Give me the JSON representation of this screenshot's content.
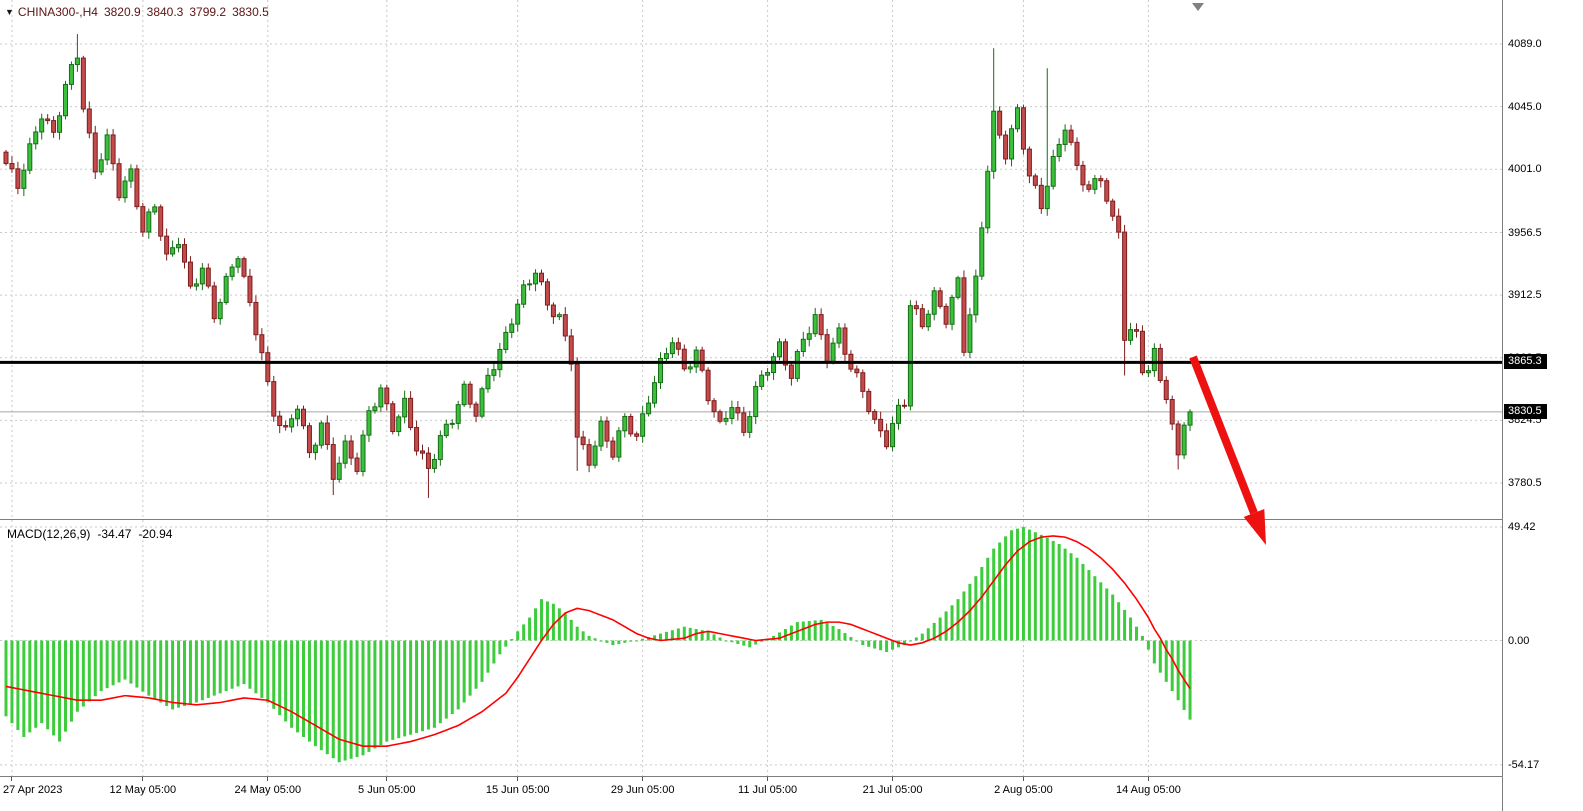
{
  "header": {
    "title": "CHINA300-,H4",
    "open": "3820.9",
    "high": "3840.3",
    "low": "3799.2",
    "close": "3830.5"
  },
  "icons": {
    "symbol_dropdown": "▼",
    "scroll_to_end_marker": "▼"
  },
  "indicator": {
    "name": "MACD(12,26,9)",
    "main_value": "-34.47",
    "signal_value": "-20.94"
  },
  "price_scale": {
    "gridline_labels": [
      {
        "text": "4089.0",
        "value": 4089.0
      },
      {
        "text": "4045.0",
        "value": 4045.0
      },
      {
        "text": "4001.0",
        "value": 4001.0
      },
      {
        "text": "3956.5",
        "value": 3956.5
      },
      {
        "text": "3912.5",
        "value": 3912.5
      },
      {
        "text": "3868.5",
        "value": 3868.5
      },
      {
        "text": "3824.5",
        "value": 3824.5
      },
      {
        "text": "3780.5",
        "value": 3780.5
      }
    ],
    "line_badge": {
      "text": "3865.3",
      "value": 3865.3
    },
    "price_badge": {
      "text": "3830.5",
      "value": 3830.5
    }
  },
  "macd_scale": {
    "labels": [
      {
        "text": "49.42",
        "value": 49.42
      },
      {
        "text": "0.00",
        "value": 0
      },
      {
        "text": "-54.17",
        "value": -54.17
      }
    ]
  },
  "time_scale": {
    "labels": [
      {
        "text": "27 Apr 2023",
        "bar": 1
      },
      {
        "text": "12 May 05:00",
        "bar": 23
      },
      {
        "text": "24 May 05:00",
        "bar": 44
      },
      {
        "text": "5 Jun 05:00",
        "bar": 64
      },
      {
        "text": "15 Jun 05:00",
        "bar": 86
      },
      {
        "text": "29 Jun 05:00",
        "bar": 107
      },
      {
        "text": "11 Jul 05:00",
        "bar": 128
      },
      {
        "text": "21 Jul 05:00",
        "bar": 149
      },
      {
        "text": "2 Aug 05:00",
        "bar": 171
      },
      {
        "text": "14 Aug 05:00",
        "bar": 192
      }
    ]
  },
  "colors": {
    "bull": "#3cbf3c",
    "bull_border": "#156e15",
    "bear": "#c24b4b",
    "bear_border": "#7e1d1d",
    "histogram": "#3ccc3c",
    "signal_line": "#ff0000",
    "grid": "#c9c9c9",
    "price_line": "#000000",
    "current_price_line": "#a8a8a8",
    "arrow": "#ee1111",
    "badge_bg": "#000000",
    "badge_text": "#ffffff",
    "header_text": "#5c1414",
    "scale_text": "#000000",
    "marker": "#808080"
  },
  "chart_data": {
    "type": "candlestick",
    "symbol": "CHINA300-",
    "timeframe": "H4",
    "bars": 200,
    "price_gridlines": [
      4089.0,
      4045.0,
      4001.0,
      3956.5,
      3912.5,
      3868.5,
      3824.5,
      3780.5
    ],
    "horizontal_line_price": 3865.3,
    "current_price": 3830.5,
    "ohlc_last": {
      "open": 3820.9,
      "high": 3840.3,
      "low": 3799.2,
      "close": 3830.5
    },
    "candle_close_anchors": [
      [
        0,
        4005
      ],
      [
        2,
        3990
      ],
      [
        4,
        4015
      ],
      [
        6,
        4040
      ],
      [
        8,
        4025
      ],
      [
        10,
        4060
      ],
      [
        12,
        4082
      ],
      [
        13,
        4045
      ],
      [
        15,
        4000
      ],
      [
        17,
        4022
      ],
      [
        19,
        3985
      ],
      [
        21,
        3998
      ],
      [
        23,
        3958
      ],
      [
        25,
        3976
      ],
      [
        27,
        3938
      ],
      [
        29,
        3952
      ],
      [
        31,
        3916
      ],
      [
        33,
        3932
      ],
      [
        35,
        3898
      ],
      [
        37,
        3922
      ],
      [
        39,
        3942
      ],
      [
        41,
        3905
      ],
      [
        43,
        3872
      ],
      [
        44,
        3848
      ],
      [
        45,
        3830
      ],
      [
        47,
        3816
      ],
      [
        49,
        3836
      ],
      [
        51,
        3800
      ],
      [
        53,
        3822
      ],
      [
        55,
        3786
      ],
      [
        57,
        3806
      ],
      [
        59,
        3792
      ],
      [
        61,
        3830
      ],
      [
        63,
        3846
      ],
      [
        65,
        3820
      ],
      [
        67,
        3836
      ],
      [
        69,
        3806
      ],
      [
        71,
        3790
      ],
      [
        73,
        3812
      ],
      [
        75,
        3826
      ],
      [
        77,
        3846
      ],
      [
        79,
        3830
      ],
      [
        81,
        3856
      ],
      [
        83,
        3872
      ],
      [
        85,
        3896
      ],
      [
        87,
        3916
      ],
      [
        89,
        3930
      ],
      [
        91,
        3906
      ],
      [
        93,
        3896
      ],
      [
        95,
        3868
      ],
      [
        96,
        3812
      ],
      [
        98,
        3796
      ],
      [
        100,
        3820
      ],
      [
        102,
        3802
      ],
      [
        104,
        3826
      ],
      [
        106,
        3812
      ],
      [
        108,
        3840
      ],
      [
        110,
        3864
      ],
      [
        112,
        3882
      ],
      [
        114,
        3860
      ],
      [
        116,
        3872
      ],
      [
        118,
        3842
      ],
      [
        120,
        3820
      ],
      [
        122,
        3836
      ],
      [
        124,
        3816
      ],
      [
        126,
        3846
      ],
      [
        128,
        3862
      ],
      [
        130,
        3876
      ],
      [
        132,
        3856
      ],
      [
        134,
        3882
      ],
      [
        136,
        3896
      ],
      [
        138,
        3870
      ],
      [
        140,
        3886
      ],
      [
        142,
        3862
      ],
      [
        144,
        3846
      ],
      [
        146,
        3822
      ],
      [
        148,
        3810
      ],
      [
        150,
        3832
      ],
      [
        151,
        3838
      ],
      [
        152,
        3906
      ],
      [
        154,
        3892
      ],
      [
        156,
        3912
      ],
      [
        158,
        3896
      ],
      [
        160,
        3922
      ],
      [
        161,
        3876
      ],
      [
        163,
        3922
      ],
      [
        164,
        3962
      ],
      [
        165,
        4002
      ],
      [
        166,
        4038
      ],
      [
        168,
        4012
      ],
      [
        170,
        4042
      ],
      [
        172,
        3996
      ],
      [
        174,
        3976
      ],
      [
        176,
        4006
      ],
      [
        178,
        4032
      ],
      [
        180,
        4002
      ],
      [
        182,
        3986
      ],
      [
        184,
        3996
      ],
      [
        186,
        3964
      ],
      [
        187,
        3958
      ],
      [
        188,
        3884
      ],
      [
        190,
        3886
      ],
      [
        191,
        3862
      ],
      [
        192,
        3858
      ],
      [
        193,
        3872
      ],
      [
        194,
        3856
      ],
      [
        195,
        3840
      ],
      [
        196,
        3818
      ],
      [
        197,
        3802
      ],
      [
        198,
        3824
      ],
      [
        199,
        3830.5
      ]
    ],
    "wick_overrides": {
      "12": {
        "high": 4096
      },
      "55": {
        "low": 3772
      },
      "71": {
        "low": 3770
      },
      "96": {
        "low": 3789
      },
      "166": {
        "high": 4086
      },
      "175": {
        "high": 4072
      },
      "188": {
        "low": 3856
      },
      "197": {
        "low": 3790
      }
    },
    "macd": {
      "type": "bar+line",
      "ylim": [
        -54.17,
        49.42
      ],
      "gridlines": [
        49.42,
        0,
        -54.17
      ],
      "hist_anchors": [
        [
          0,
          -33
        ],
        [
          3,
          -42
        ],
        [
          6,
          -36
        ],
        [
          9,
          -44
        ],
        [
          12,
          -31
        ],
        [
          16,
          -22
        ],
        [
          20,
          -17
        ],
        [
          24,
          -24
        ],
        [
          28,
          -30
        ],
        [
          32,
          -27
        ],
        [
          36,
          -23
        ],
        [
          40,
          -19
        ],
        [
          44,
          -27
        ],
        [
          48,
          -38
        ],
        [
          52,
          -46
        ],
        [
          56,
          -53
        ],
        [
          60,
          -50
        ],
        [
          64,
          -44
        ],
        [
          68,
          -41
        ],
        [
          72,
          -38
        ],
        [
          76,
          -30
        ],
        [
          80,
          -18
        ],
        [
          83,
          -6
        ],
        [
          86,
          4
        ],
        [
          88,
          10
        ],
        [
          90,
          18
        ],
        [
          92,
          16
        ],
        [
          94,
          12
        ],
        [
          96,
          6
        ],
        [
          98,
          2
        ],
        [
          102,
          -2
        ],
        [
          106,
          0
        ],
        [
          110,
          3
        ],
        [
          114,
          6
        ],
        [
          118,
          4
        ],
        [
          121,
          0
        ],
        [
          125,
          -3
        ],
        [
          129,
          2
        ],
        [
          133,
          8
        ],
        [
          137,
          9
        ],
        [
          140,
          5
        ],
        [
          144,
          -2
        ],
        [
          148,
          -5
        ],
        [
          151,
          -2
        ],
        [
          154,
          3
        ],
        [
          157,
          10
        ],
        [
          160,
          18
        ],
        [
          163,
          28
        ],
        [
          166,
          40
        ],
        [
          169,
          48
        ],
        [
          171,
          49.4
        ],
        [
          174,
          46
        ],
        [
          177,
          42
        ],
        [
          180,
          36
        ],
        [
          183,
          28
        ],
        [
          186,
          20
        ],
        [
          189,
          10
        ],
        [
          191,
          2
        ],
        [
          193,
          -10
        ],
        [
          195,
          -18
        ],
        [
          197,
          -26
        ],
        [
          199,
          -34.47
        ]
      ],
      "signal_anchors": [
        [
          0,
          -20
        ],
        [
          4,
          -22
        ],
        [
          8,
          -24
        ],
        [
          12,
          -26
        ],
        [
          16,
          -26
        ],
        [
          20,
          -24
        ],
        [
          24,
          -25
        ],
        [
          28,
          -27
        ],
        [
          32,
          -28
        ],
        [
          36,
          -27
        ],
        [
          40,
          -25
        ],
        [
          44,
          -26
        ],
        [
          48,
          -31
        ],
        [
          52,
          -37
        ],
        [
          56,
          -43
        ],
        [
          60,
          -46
        ],
        [
          64,
          -46
        ],
        [
          68,
          -44
        ],
        [
          72,
          -41
        ],
        [
          76,
          -37
        ],
        [
          80,
          -31
        ],
        [
          84,
          -23
        ],
        [
          86,
          -16
        ],
        [
          88,
          -8
        ],
        [
          90,
          0
        ],
        [
          92,
          7
        ],
        [
          94,
          12
        ],
        [
          96,
          14
        ],
        [
          98,
          13
        ],
        [
          100,
          11
        ],
        [
          102,
          9
        ],
        [
          104,
          6
        ],
        [
          106,
          3
        ],
        [
          108,
          1
        ],
        [
          110,
          0
        ],
        [
          114,
          1
        ],
        [
          116,
          3
        ],
        [
          118,
          4
        ],
        [
          120,
          3
        ],
        [
          124,
          1
        ],
        [
          126,
          0
        ],
        [
          130,
          1
        ],
        [
          132,
          3
        ],
        [
          134,
          5
        ],
        [
          136,
          7
        ],
        [
          138,
          8
        ],
        [
          140,
          8
        ],
        [
          142,
          7
        ],
        [
          144,
          5
        ],
        [
          146,
          3
        ],
        [
          148,
          1
        ],
        [
          150,
          -1
        ],
        [
          152,
          -2
        ],
        [
          154,
          -1
        ],
        [
          156,
          1
        ],
        [
          158,
          4
        ],
        [
          160,
          8
        ],
        [
          162,
          13
        ],
        [
          164,
          19
        ],
        [
          166,
          26
        ],
        [
          168,
          33
        ],
        [
          170,
          39
        ],
        [
          172,
          43
        ],
        [
          174,
          45
        ],
        [
          176,
          45.5
        ],
        [
          178,
          45
        ],
        [
          180,
          43
        ],
        [
          182,
          40
        ],
        [
          184,
          36
        ],
        [
          186,
          31
        ],
        [
          188,
          25
        ],
        [
          190,
          18
        ],
        [
          192,
          10
        ],
        [
          193,
          5
        ],
        [
          194,
          1
        ],
        [
          195,
          -4
        ],
        [
          196,
          -8
        ],
        [
          197,
          -13
        ],
        [
          198,
          -17
        ],
        [
          199,
          -20.94
        ]
      ]
    }
  }
}
